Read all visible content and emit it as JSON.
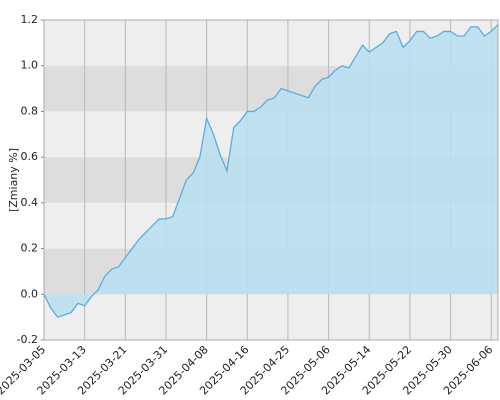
{
  "chart_data": {
    "type": "area",
    "y_label": "[Zmiany %]",
    "categories": [
      "2025-03-05",
      null,
      null,
      null,
      null,
      null,
      "2025-03-13",
      null,
      null,
      null,
      null,
      null,
      "2025-03-21",
      null,
      null,
      null,
      null,
      null,
      "2025-03-31",
      null,
      null,
      null,
      null,
      null,
      "2025-04-08",
      null,
      null,
      null,
      null,
      null,
      "2025-04-16",
      null,
      null,
      null,
      null,
      null,
      "2025-04-25",
      null,
      null,
      null,
      null,
      null,
      "2025-05-06",
      null,
      null,
      null,
      null,
      null,
      "2025-05-14",
      null,
      null,
      null,
      null,
      null,
      "2025-05-22",
      null,
      null,
      null,
      null,
      null,
      "2025-05-30",
      null,
      null,
      null,
      null,
      null,
      "2025-06-06",
      null
    ],
    "values": [
      0.0,
      -0.06,
      -0.1,
      -0.09,
      -0.08,
      -0.04,
      -0.05,
      -0.01,
      0.02,
      0.08,
      0.11,
      0.12,
      0.16,
      0.2,
      0.24,
      0.27,
      0.3,
      0.33,
      0.33,
      0.34,
      0.42,
      0.5,
      0.53,
      0.6,
      0.77,
      0.7,
      0.61,
      0.54,
      0.73,
      0.76,
      0.8,
      0.8,
      0.82,
      0.85,
      0.86,
      0.9,
      0.89,
      0.88,
      0.87,
      0.86,
      0.91,
      0.94,
      0.95,
      0.98,
      1.0,
      0.99,
      1.04,
      1.09,
      1.06,
      1.08,
      1.1,
      1.14,
      1.15,
      1.08,
      1.11,
      1.15,
      1.15,
      1.12,
      1.13,
      1.15,
      1.15,
      1.13,
      1.13,
      1.17,
      1.17,
      1.13,
      1.15,
      1.18
    ],
    "color": "#5aaee0",
    "fill_color": "#b9dff0",
    "ylim": [
      -0.2,
      1.2
    ],
    "yticks": [
      -0.2,
      {
        "value": 0,
        "label": "0.0"
      },
      0.2,
      0.4,
      0.6,
      0.8,
      {
        "value": 1,
        "label": "1.0"
      },
      1.2
    ],
    "grid": true
  }
}
